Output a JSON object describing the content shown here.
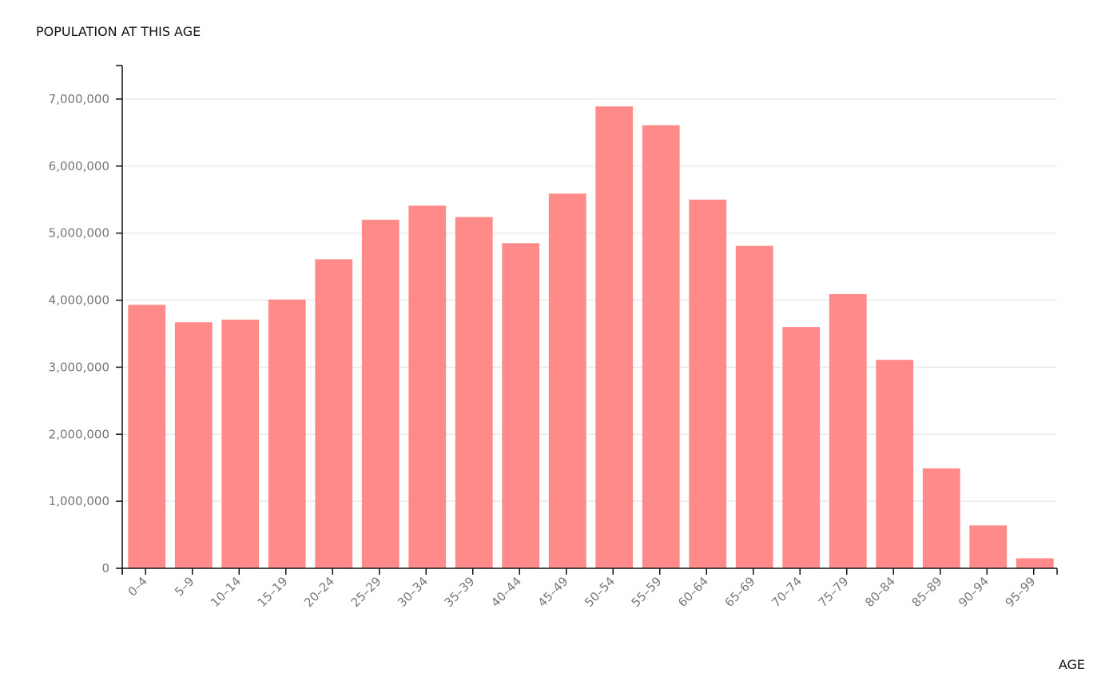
{
  "chart_data": {
    "type": "bar",
    "ylabel": "POPULATION AT THIS AGE",
    "xlabel": "AGE",
    "ylim": [
      0,
      7500000
    ],
    "grid": true,
    "bar_color": "#ff8a8a",
    "yticks": [
      0,
      1000000,
      2000000,
      3000000,
      4000000,
      5000000,
      6000000,
      7000000
    ],
    "ytick_labels": [
      "0",
      "1,000,000",
      "2,000,000",
      "3,000,000",
      "4,000,000",
      "5,000,000",
      "6,000,000",
      "7,000,000"
    ],
    "categories": [
      "0–4",
      "5–9",
      "10–14",
      "15–19",
      "20–24",
      "25–29",
      "30–34",
      "35–39",
      "40–44",
      "45–49",
      "50–54",
      "55–59",
      "60–64",
      "65–69",
      "70–74",
      "75–79",
      "80–84",
      "85–89",
      "90–94",
      "95–99"
    ],
    "values": [
      3930000,
      3670000,
      3710000,
      4010000,
      4610000,
      5200000,
      5410000,
      5240000,
      4850000,
      5590000,
      6890000,
      6610000,
      5500000,
      4810000,
      3600000,
      4090000,
      3110000,
      1490000,
      640000,
      150000
    ]
  }
}
